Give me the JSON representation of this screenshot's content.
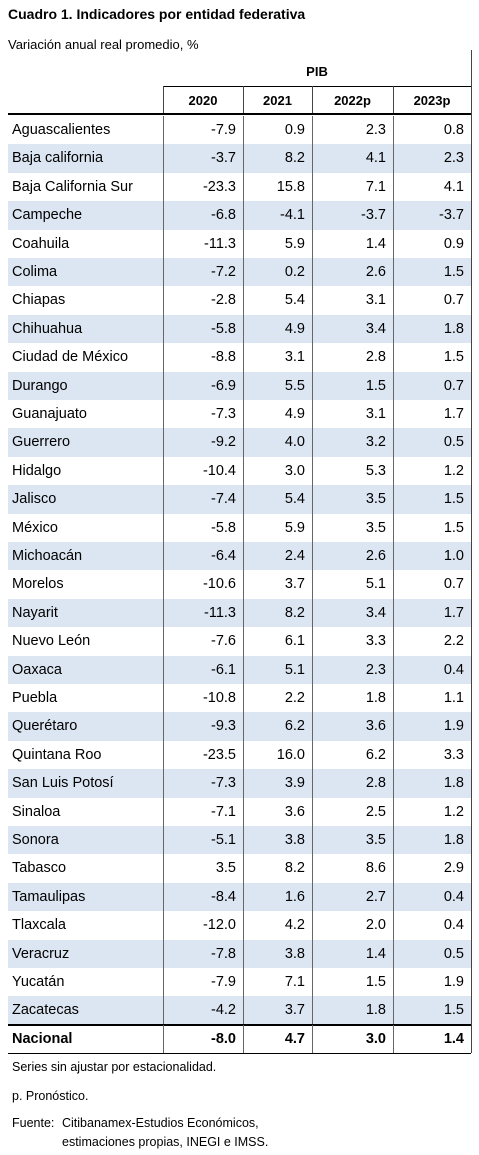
{
  "header": {
    "title": "Cuadro 1. Indicadores por entidad federativa",
    "subtitle": "Variación anual real promedio, %"
  },
  "table": {
    "group_header": "PIB",
    "columns": [
      "2020",
      "2021",
      "2022p",
      "2023p"
    ],
    "rows": [
      [
        "Aguascalientes",
        "-7.9",
        "0.9",
        "2.3",
        "0.8"
      ],
      [
        "Baja california",
        "-3.7",
        "8.2",
        "4.1",
        "2.3"
      ],
      [
        "Baja California Sur",
        "-23.3",
        "15.8",
        "7.1",
        "4.1"
      ],
      [
        "Campeche",
        "-6.8",
        "-4.1",
        "-3.7",
        "-3.7"
      ],
      [
        "Coahuila",
        "-11.3",
        "5.9",
        "1.4",
        "0.9"
      ],
      [
        "Colima",
        "-7.2",
        "0.2",
        "2.6",
        "1.5"
      ],
      [
        "Chiapas",
        "-2.8",
        "5.4",
        "3.1",
        "0.7"
      ],
      [
        "Chihuahua",
        "-5.8",
        "4.9",
        "3.4",
        "1.8"
      ],
      [
        "Ciudad de México",
        "-8.8",
        "3.1",
        "2.8",
        "1.5"
      ],
      [
        "Durango",
        "-6.9",
        "5.5",
        "1.5",
        "0.7"
      ],
      [
        "Guanajuato",
        "-7.3",
        "4.9",
        "3.1",
        "1.7"
      ],
      [
        "Guerrero",
        "-9.2",
        "4.0",
        "3.2",
        "0.5"
      ],
      [
        "Hidalgo",
        "-10.4",
        "3.0",
        "5.3",
        "1.2"
      ],
      [
        "Jalisco",
        "-7.4",
        "5.4",
        "3.5",
        "1.5"
      ],
      [
        "México",
        "-5.8",
        "5.9",
        "3.5",
        "1.5"
      ],
      [
        "Michoacán",
        "-6.4",
        "2.4",
        "2.6",
        "1.0"
      ],
      [
        "Morelos",
        "-10.6",
        "3.7",
        "5.1",
        "0.7"
      ],
      [
        "Nayarit",
        "-11.3",
        "8.2",
        "3.4",
        "1.7"
      ],
      [
        "Nuevo León",
        "-7.6",
        "6.1",
        "3.3",
        "2.2"
      ],
      [
        "Oaxaca",
        "-6.1",
        "5.1",
        "2.3",
        "0.4"
      ],
      [
        "Puebla",
        "-10.8",
        "2.2",
        "1.8",
        "1.1"
      ],
      [
        "Querétaro",
        "-9.3",
        "6.2",
        "3.6",
        "1.9"
      ],
      [
        "Quintana Roo",
        "-23.5",
        "16.0",
        "6.2",
        "3.3"
      ],
      [
        "San Luis Potosí",
        "-7.3",
        "3.9",
        "2.8",
        "1.8"
      ],
      [
        "Sinaloa",
        "-7.1",
        "3.6",
        "2.5",
        "1.2"
      ],
      [
        "Sonora",
        "-5.1",
        "3.8",
        "3.5",
        "1.8"
      ],
      [
        "Tabasco",
        "3.5",
        "8.2",
        "8.6",
        "2.9"
      ],
      [
        "Tamaulipas",
        "-8.4",
        "1.6",
        "2.7",
        "0.4"
      ],
      [
        "Tlaxcala",
        "-12.0",
        "4.2",
        "2.0",
        "0.4"
      ],
      [
        "Veracruz",
        "-7.8",
        "3.8",
        "1.4",
        "0.5"
      ],
      [
        "Yucatán",
        "-7.9",
        "7.1",
        "1.5",
        "1.9"
      ],
      [
        "Zacatecas",
        "-4.2",
        "3.7",
        "1.8",
        "1.5"
      ]
    ],
    "total": [
      "Nacional",
      "-8.0",
      "4.7",
      "3.0",
      "1.4"
    ]
  },
  "footer": {
    "notes": [
      "Series sin ajustar por estacionalidad.",
      "p. Pronóstico."
    ],
    "source": {
      "label": "Fuente:",
      "lines": [
        "Citibanamex-Estudios Económicos,",
        "estimaciones propias, INEGI e IMSS."
      ]
    }
  }
}
